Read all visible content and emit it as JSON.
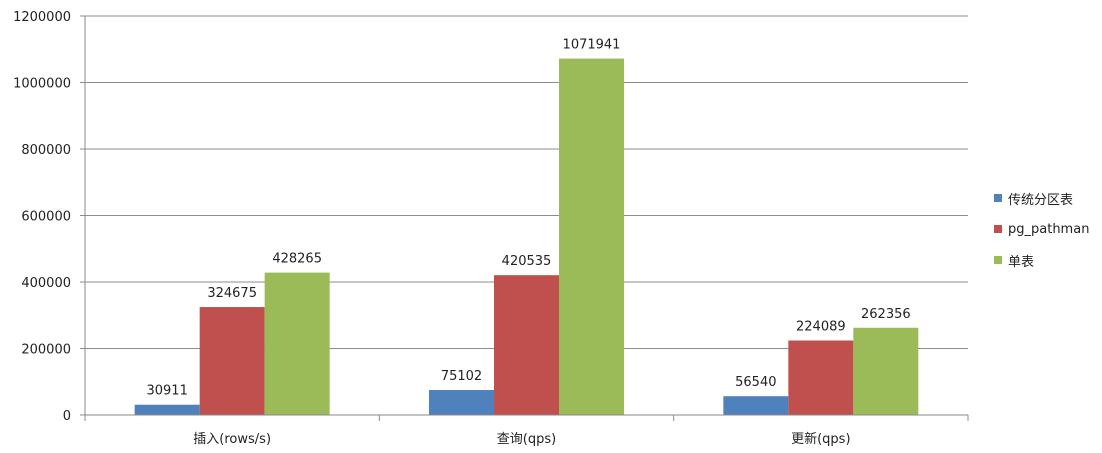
{
  "chart_data": {
    "type": "bar",
    "title": "",
    "xlabel": "",
    "ylabel": "",
    "categories": [
      "插入(rows/s)",
      "查询(qps)",
      "更新(qps)"
    ],
    "series": [
      {
        "name": "传统分区表",
        "color": "#4F81BD",
        "values": [
          30911,
          75102,
          56540
        ]
      },
      {
        "name": "pg_pathman",
        "color": "#C0504D",
        "values": [
          324675,
          420535,
          224089
        ]
      },
      {
        "name": "单表",
        "color": "#9BBB59",
        "values": [
          428265,
          1071941,
          262356
        ]
      }
    ],
    "ylim": [
      0,
      1200000
    ],
    "yticks": [
      "0",
      "200000",
      "400000",
      "600000",
      "800000",
      "1000000",
      "1200000"
    ],
    "grid": true,
    "legend_position": "right"
  }
}
